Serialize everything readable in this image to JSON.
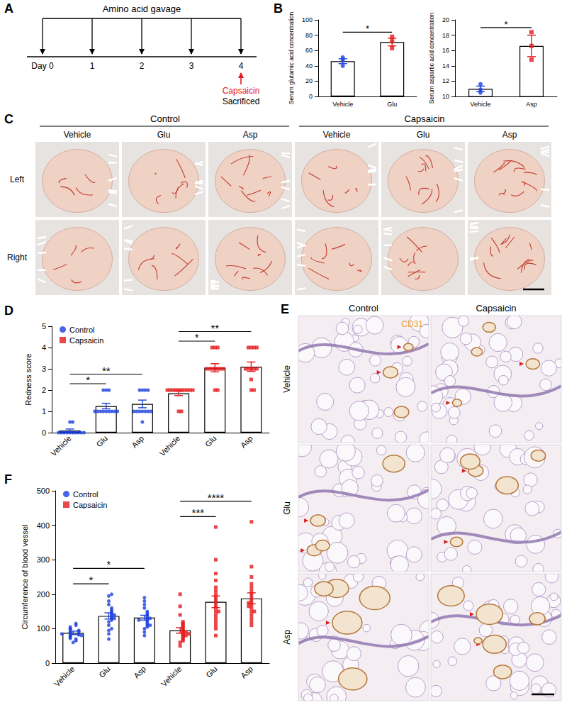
{
  "panel_labels": [
    "A",
    "B",
    "C",
    "D",
    "E",
    "F"
  ],
  "timeline": {
    "title": "Amino acid gavage",
    "days": [
      "Day 0",
      "1",
      "2",
      "3",
      "4"
    ],
    "treatment": "Capsaicin",
    "endpoint": "Sacrificed"
  },
  "photos": {
    "groups": [
      "Control",
      "Capsaicin"
    ],
    "treatments": [
      "Vehicle",
      "Glu",
      "Asp"
    ],
    "sides": [
      "Left",
      "Right"
    ]
  },
  "histology": {
    "stain": "CD31",
    "groups": [
      "Control",
      "Capsaicin"
    ],
    "treatments": [
      "Vehicle",
      "Glu",
      "Asp"
    ]
  },
  "chart_data": [
    {
      "type": "bar",
      "ylabel": "Serum glutamic acid concentration",
      "categories": [
        "Vehicle",
        "Glu"
      ],
      "ylim": [
        0,
        100
      ],
      "yticks": [
        0,
        20,
        40,
        60,
        80,
        100
      ],
      "series": [
        {
          "name": "Vehicle",
          "color": "#1c3fe0",
          "marker": "circle",
          "values": [
            46,
            null
          ],
          "errors": [
            3.2,
            null
          ],
          "points": [
            [
              40,
              47,
              51
            ],
            null
          ]
        },
        {
          "name": "Glu",
          "color": "#e3191c",
          "marker": "square",
          "values": [
            null,
            71
          ],
          "errors": [
            null,
            5
          ],
          "points": [
            null,
            [
              63,
              72,
              78
            ]
          ]
        }
      ],
      "comparisons": [
        {
          "from": 0,
          "to": 1,
          "label": "*"
        }
      ]
    },
    {
      "type": "bar",
      "ylabel": "Serum aspartic acid concentration",
      "categories": [
        "Vehicle",
        "Asp"
      ],
      "ylim": [
        10,
        20
      ],
      "yticks": [
        10,
        12,
        14,
        16,
        18,
        20
      ],
      "series": [
        {
          "name": "Vehicle",
          "color": "#1c3fe0",
          "marker": "circle",
          "values": [
            11,
            null
          ],
          "errors": [
            0.35,
            null
          ],
          "points": [
            [
              10.5,
              10.9,
              11.6
            ],
            null
          ]
        },
        {
          "name": "Asp",
          "color": "#e3191c",
          "marker": "square",
          "values": [
            null,
            16.6
          ],
          "errors": [
            null,
            1.4
          ],
          "points": [
            null,
            [
              14.8,
              16.6,
              18.4
            ]
          ]
        }
      ],
      "comparisons": [
        {
          "from": 0,
          "to": 1,
          "label": "*"
        }
      ]
    },
    {
      "type": "bar",
      "ylabel": "Redness score",
      "categories": [
        "Vehicle",
        "Glu",
        "Asp",
        "Vehicle",
        "Glu",
        "Asp"
      ],
      "ylim": [
        0,
        5
      ],
      "yticks": [
        0,
        1,
        2,
        3,
        4,
        5
      ],
      "legend": "upper left",
      "series": [
        {
          "name": "Control",
          "color": "#1c3fe0",
          "marker": "circle",
          "values": [
            0.1,
            1.25,
            1.35,
            null,
            null,
            null
          ],
          "errors": [
            0.07,
            0.13,
            0.18,
            null,
            null,
            null
          ],
          "points": [
            [
              0,
              0,
              0,
              0,
              0,
              0,
              0,
              0,
              0,
              0,
              0.5,
              0.5
            ],
            [
              1,
              1,
              1,
              1,
              1,
              1,
              1,
              1,
              2,
              2,
              2,
              1
            ],
            [
              1,
              1,
              1,
              1,
              1,
              1,
              1,
              2,
              2,
              2,
              2,
              0.5
            ],
            null,
            null,
            null
          ]
        },
        {
          "name": "Capsaicin",
          "color": "#e3191c",
          "marker": "square",
          "values": [
            null,
            null,
            null,
            1.85,
            3.05,
            3.1
          ],
          "errors": [
            null,
            null,
            null,
            0.11,
            0.19,
            0.22
          ],
          "points": [
            null,
            null,
            null,
            [
              2,
              2,
              2,
              2,
              2,
              2,
              2,
              1,
              1,
              2,
              2,
              2
            ],
            [
              3,
              3,
              3,
              3,
              4,
              4,
              2,
              2,
              3,
              3,
              3,
              4
            ],
            [
              3,
              3,
              4,
              4,
              4,
              2,
              2,
              3,
              3,
              3,
              4,
              2.5
            ]
          ]
        }
      ],
      "comparisons": [
        {
          "from": 0,
          "to": 1,
          "label": "*"
        },
        {
          "from": 0,
          "to": 2,
          "label": "**"
        },
        {
          "from": 3,
          "to": 4,
          "label": "*"
        },
        {
          "from": 3,
          "to": 5,
          "label": "**"
        }
      ]
    },
    {
      "type": "bar",
      "ylabel": "Circumference of blood vessel",
      "categories": [
        "Vehicle",
        "Glu",
        "Asp",
        "Vehicle",
        "Glu",
        "Asp"
      ],
      "ylim": [
        0,
        500
      ],
      "yticks": [
        0,
        100,
        200,
        300,
        400,
        500
      ],
      "legend": "upper left",
      "series": [
        {
          "name": "Control",
          "color": "#1c3fe0",
          "marker": "circle",
          "values": [
            88,
            137,
            132,
            null,
            null,
            null
          ],
          "errors": [
            5,
            9,
            7,
            null,
            null,
            null
          ],
          "points": [
            [
              60,
              65,
              70,
              72,
              75,
              78,
              80,
              82,
              85,
              88,
              90,
              92,
              95,
              98,
              100,
              105,
              110,
              115,
              80,
              85
            ],
            [
              70,
              85,
              95,
              100,
              110,
              120,
              125,
              130,
              135,
              140,
              145,
              150,
              155,
              160,
              170,
              180,
              195,
              200,
              130,
              140
            ],
            [
              80,
              90,
              100,
              105,
              110,
              115,
              120,
              125,
              130,
              135,
              140,
              145,
              150,
              160,
              170,
              180,
              190,
              110,
              130,
              125
            ],
            null,
            null,
            null
          ]
        },
        {
          "name": "Capsaicin",
          "color": "#e3191c",
          "marker": "square",
          "values": [
            null,
            null,
            null,
            95,
            178,
            188
          ],
          "errors": [
            null,
            null,
            null,
            8,
            17,
            16
          ],
          "points": [
            null,
            null,
            null,
            [
              50,
              60,
              65,
              70,
              75,
              80,
              85,
              90,
              95,
              100,
              105,
              110,
              115,
              120,
              140,
              165,
              200,
              80,
              90,
              85
            ],
            [
              80,
              100,
              110,
              120,
              140,
              150,
              160,
              170,
              180,
              190,
              200,
              210,
              220,
              240,
              260,
              300,
              395,
              130,
              150
            ],
            [
              110,
              120,
              130,
              140,
              150,
              160,
              170,
              180,
              190,
              200,
              210,
              220,
              230,
              250,
              280,
              410,
              150,
              165,
              175
            ]
          ]
        }
      ],
      "comparisons": [
        {
          "from": 0,
          "to": 1,
          "label": "*"
        },
        {
          "from": 0,
          "to": 2,
          "label": "*"
        },
        {
          "from": 3,
          "to": 4,
          "label": "***"
        },
        {
          "from": 3,
          "to": 5,
          "label": "****"
        }
      ]
    }
  ]
}
